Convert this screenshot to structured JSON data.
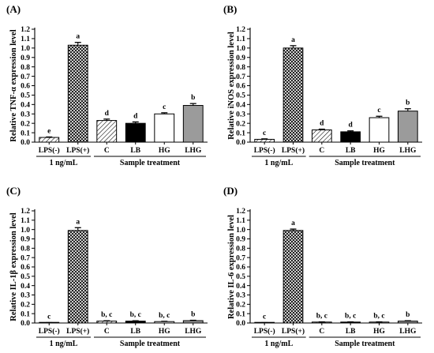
{
  "chart_data": [
    {
      "type": "bar",
      "panel": "(A)",
      "ylabel": "Relative TNF-α expression level",
      "ylim": [
        0,
        1.2
      ],
      "yticks": [
        "0.0",
        "0.1",
        "0.2",
        "0.3",
        "0.4",
        "0.5",
        "0.6",
        "0.7",
        "0.8",
        "0.9",
        "1.0",
        "1.1",
        "1.2"
      ],
      "categories": [
        "LPS(-)",
        "LPS(+)",
        "C",
        "LB",
        "HG",
        "LHG"
      ],
      "values": [
        0.05,
        1.03,
        0.23,
        0.2,
        0.3,
        0.39
      ],
      "errors": [
        0.005,
        0.03,
        0.015,
        0.015,
        0.012,
        0.02
      ],
      "significance": [
        "e",
        "a",
        "d",
        "d",
        "c",
        "b"
      ],
      "groups": [
        {
          "label": "1 ng/mL",
          "span": [
            0,
            1
          ]
        },
        {
          "label": "Sample treatment",
          "span": [
            2,
            5
          ]
        }
      ]
    },
    {
      "type": "bar",
      "panel": "(B)",
      "ylabel": "Relative iNOS expression level",
      "ylim": [
        0,
        1.2
      ],
      "yticks": [
        "0.0",
        "0.1",
        "0.2",
        "0.3",
        "0.4",
        "0.5",
        "0.6",
        "0.7",
        "0.8",
        "0.9",
        "1.0",
        "1.1",
        "1.2"
      ],
      "categories": [
        "LPS(-)",
        "LPS(+)",
        "C",
        "LB",
        "HG",
        "LHG"
      ],
      "values": [
        0.03,
        1.0,
        0.13,
        0.11,
        0.26,
        0.33
      ],
      "errors": [
        0.005,
        0.025,
        0.008,
        0.01,
        0.015,
        0.025
      ],
      "significance": [
        "c",
        "a",
        "d",
        "d",
        "c",
        "b"
      ],
      "groups": [
        {
          "label": "1 ng/mL",
          "span": [
            0,
            1
          ]
        },
        {
          "label": "Sample treatment",
          "span": [
            2,
            5
          ]
        }
      ]
    },
    {
      "type": "bar",
      "panel": "(C)",
      "ylabel": "Relative IL-1β expression level",
      "ylim": [
        0,
        1.2
      ],
      "yticks": [
        "0.0",
        "0.1",
        "0.2",
        "0.3",
        "0.4",
        "0.5",
        "0.6",
        "0.7",
        "0.8",
        "0.9",
        "1.0",
        "1.1",
        "1.2"
      ],
      "categories": [
        "LPS(-)",
        "LPS(+)",
        "C",
        "LB",
        "HG",
        "LHG"
      ],
      "values": [
        0.003,
        0.99,
        0.02,
        0.02,
        0.015,
        0.025
      ],
      "errors": [
        0.001,
        0.03,
        0.004,
        0.004,
        0.003,
        0.004
      ],
      "significance": [
        "c",
        "a",
        "b, c",
        "b, c",
        "b, c",
        "b"
      ],
      "groups": [
        {
          "label": "1 ng/mL",
          "span": [
            0,
            1
          ]
        },
        {
          "label": "Sample treatment",
          "span": [
            2,
            5
          ]
        }
      ]
    },
    {
      "type": "bar",
      "panel": "(D)",
      "ylabel": "Relative IL-6 expression level",
      "ylim": [
        0,
        1.2
      ],
      "yticks": [
        "0.0",
        "0.1",
        "0.2",
        "0.3",
        "0.4",
        "0.5",
        "0.6",
        "0.7",
        "0.8",
        "0.9",
        "1.0",
        "1.1",
        "1.2"
      ],
      "categories": [
        "LPS(-)",
        "LPS(+)",
        "C",
        "LB",
        "HG",
        "LHG"
      ],
      "values": [
        0.003,
        0.99,
        0.01,
        0.01,
        0.01,
        0.02
      ],
      "errors": [
        0.001,
        0.015,
        0.002,
        0.002,
        0.002,
        0.004
      ],
      "significance": [
        "c",
        "a",
        "b, c",
        "b, c",
        "b, c",
        "b"
      ],
      "groups": [
        {
          "label": "1 ng/mL",
          "span": [
            0,
            1
          ]
        },
        {
          "label": "Sample treatment",
          "span": [
            2,
            5
          ]
        }
      ]
    }
  ],
  "bar_styles": [
    "hatched",
    "crosshatched",
    "hatched",
    "black",
    "white",
    "gray"
  ],
  "colors": {
    "axis": "#000000",
    "black_bar": "#000000",
    "gray_bar": "#9b9b9b",
    "white_bar": "#ffffff"
  }
}
